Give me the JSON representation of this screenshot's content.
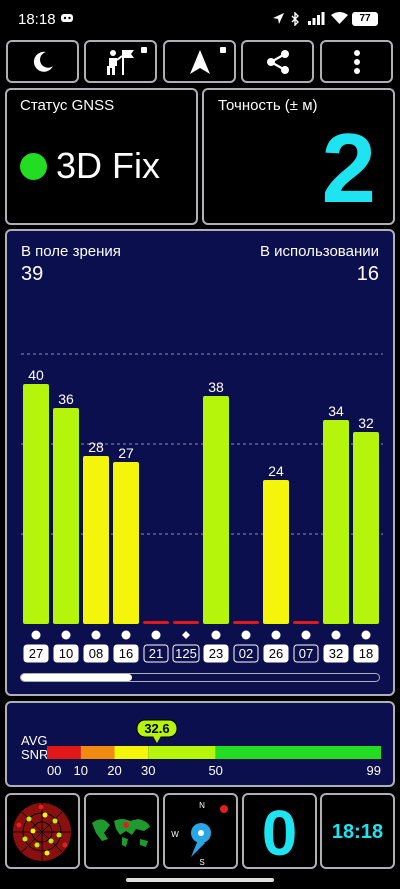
{
  "status_bar": {
    "time": "18:18",
    "battery": "77"
  },
  "toolbar": {
    "buttons": [
      {
        "name": "night-mode",
        "icon": "moon-icon"
      },
      {
        "name": "sky-view",
        "icon": "man-with-flag-icon",
        "locked": true
      },
      {
        "name": "navigation",
        "icon": "navigation-arrow-icon",
        "locked": true
      },
      {
        "name": "share",
        "icon": "share-icon"
      },
      {
        "name": "more",
        "icon": "more-vertical-icon"
      }
    ]
  },
  "gnss_status": {
    "label": "Статус GNSS",
    "value": "3D Fix",
    "indicator_color": "#22dd22"
  },
  "accuracy": {
    "label": "Точность (± м)",
    "value": "2"
  },
  "satellites": {
    "in_view_label": "В поле зрения",
    "in_view": "39",
    "in_use_label": "В использовании",
    "in_use": "16"
  },
  "chart_data": {
    "type": "bar",
    "categories": [
      "27",
      "10",
      "08",
      "16",
      "21",
      "125",
      "23",
      "02",
      "26",
      "07",
      "32",
      "18"
    ],
    "values": [
      40,
      36,
      28,
      27,
      0,
      0,
      38,
      0,
      24,
      0,
      34,
      32
    ],
    "value_labels": [
      "40",
      "36",
      "28",
      "27",
      "",
      "",
      "38",
      "",
      "24",
      "",
      "34",
      "32"
    ],
    "ylim": [
      0,
      60
    ],
    "grid": true,
    "colors": {
      "high": "#b5f50c",
      "medium": "#f5f50c",
      "low": "#e01818"
    },
    "markers": [
      "circle",
      "circle",
      "circle",
      "circle",
      "circle",
      "diamond",
      "circle",
      "circle",
      "circle",
      "circle",
      "circle",
      "circle"
    ],
    "highlighted": [
      "27",
      "10",
      "08",
      "16",
      "23",
      "26",
      "32",
      "18"
    ],
    "scroll_fraction": 0.31
  },
  "snr": {
    "label_avg": "AVG",
    "label_snr": "SNR",
    "avg_value": "32.6",
    "avg": 32.6,
    "scale_ticks": [
      "00",
      "10",
      "20",
      "30",
      "50",
      "99"
    ],
    "segments": [
      {
        "from": 0,
        "to": 10,
        "color": "#e01818"
      },
      {
        "from": 10,
        "to": 20,
        "color": "#f08a10"
      },
      {
        "from": 20,
        "to": 30,
        "color": "#f5f50c"
      },
      {
        "from": 30,
        "to": 50,
        "color": "#b5f50c"
      },
      {
        "from": 50,
        "to": 99,
        "color": "#22dd22"
      }
    ]
  },
  "bottom_bar": {
    "radar_icon": "sky-plot-icon",
    "map_icon": "world-map-icon",
    "compass_icon": "compass-icon",
    "compass_n": "N",
    "compass_s": "S",
    "compass_w": "W",
    "satellite_count": "0",
    "clock": "18:18"
  }
}
